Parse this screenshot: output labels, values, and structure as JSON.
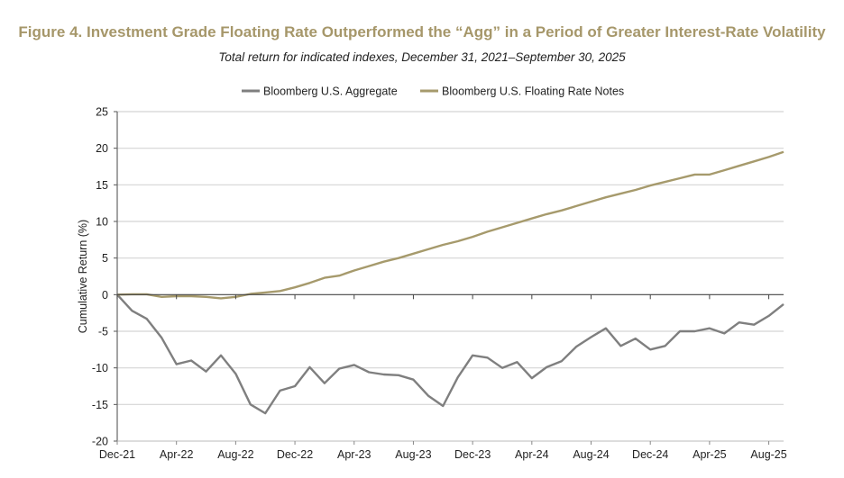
{
  "title": "Figure 4. Investment Grade Floating Rate Outperformed the “Agg” in a Period of Greater Interest-Rate Volatility",
  "subtitle": "Total return for indicated indexes, December 31, 2021–September 30, 2025",
  "chart_data": {
    "type": "line",
    "ylabel": "Cumulative Return (%)",
    "xlabel": "",
    "ylim": [
      -20,
      25
    ],
    "yticks": [
      25,
      20,
      15,
      10,
      5,
      0,
      -5,
      -10,
      -15,
      -20
    ],
    "xtick_labels": [
      "Dec-21",
      "Apr-22",
      "Aug-22",
      "Dec-22",
      "Apr-23",
      "Aug-23",
      "Dec-23",
      "Apr-24",
      "Aug-24",
      "Dec-24",
      "Apr-25",
      "Aug-25"
    ],
    "grid": "horizontal",
    "legend_position": "top",
    "x": [
      "Dec-21",
      "Jan-22",
      "Feb-22",
      "Mar-22",
      "Apr-22",
      "May-22",
      "Jun-22",
      "Jul-22",
      "Aug-22",
      "Sep-22",
      "Oct-22",
      "Nov-22",
      "Dec-22",
      "Jan-23",
      "Feb-23",
      "Mar-23",
      "Apr-23",
      "May-23",
      "Jun-23",
      "Jul-23",
      "Aug-23",
      "Sep-23",
      "Oct-23",
      "Nov-23",
      "Dec-23",
      "Jan-24",
      "Feb-24",
      "Mar-24",
      "Apr-24",
      "May-24",
      "Jun-24",
      "Jul-24",
      "Aug-24",
      "Sep-24",
      "Oct-24",
      "Nov-24",
      "Dec-24",
      "Jan-25",
      "Feb-25",
      "Mar-25",
      "Apr-25",
      "May-25",
      "Jun-25",
      "Jul-25",
      "Aug-25",
      "Sep-25"
    ],
    "series": [
      {
        "name": "Bloomberg U.S. Aggregate",
        "color": "#7f7f7f",
        "values": [
          0,
          -2.2,
          -3.3,
          -5.9,
          -9.5,
          -9.0,
          -10.5,
          -8.3,
          -10.8,
          -15.0,
          -16.2,
          -13.1,
          -12.5,
          -9.9,
          -12.1,
          -10.1,
          -9.6,
          -10.6,
          -10.9,
          -11.0,
          -11.6,
          -13.8,
          -15.2,
          -11.3,
          -8.3,
          -8.6,
          -10.0,
          -9.2,
          -11.4,
          -9.9,
          -9.1,
          -7.1,
          -5.8,
          -4.6,
          -7.0,
          -6.0,
          -7.5,
          -7.0,
          -5.0,
          -5.0,
          -4.6,
          -5.3,
          -3.8,
          -4.1,
          -2.9,
          -1.3
        ]
      },
      {
        "name": "Bloomberg U.S. Floating Rate Notes",
        "color": "#a69a6c",
        "values": [
          0,
          0.05,
          0.05,
          -0.3,
          -0.2,
          -0.2,
          -0.3,
          -0.5,
          -0.3,
          0.1,
          0.3,
          0.5,
          1.0,
          1.6,
          2.3,
          2.6,
          3.3,
          3.9,
          4.5,
          5.0,
          5.6,
          6.2,
          6.8,
          7.3,
          7.9,
          8.6,
          9.2,
          9.8,
          10.4,
          11.0,
          11.5,
          12.1,
          12.7,
          13.3,
          13.8,
          14.3,
          14.9,
          15.4,
          15.9,
          16.4,
          16.4,
          17.0,
          17.6,
          18.2,
          18.8,
          19.5
        ]
      }
    ]
  }
}
